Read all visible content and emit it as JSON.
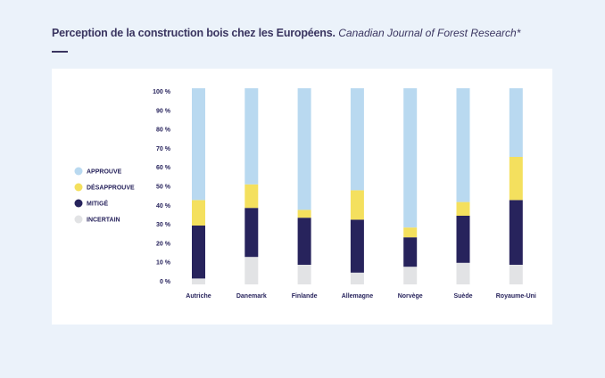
{
  "header": {
    "title": "Perception de la construction bois chez les Européens.",
    "source": "Canadian Journal of Forest Research*"
  },
  "chart_data": {
    "type": "bar",
    "stacked": true,
    "title": "Perception de la construction bois chez les Européens.",
    "categories": [
      "Autriche",
      "Danemark",
      "Finlande",
      "Allemagne",
      "Norvège",
      "Suède",
      "Royaume-Uni"
    ],
    "series": [
      {
        "name": "INCERTAIN",
        "color": "#e2e3e5",
        "values": [
          3,
          14,
          10,
          6,
          9,
          11,
          10
        ]
      },
      {
        "name": "MITIGÉ",
        "color": "#27235c",
        "values": [
          27,
          25,
          24,
          27,
          15,
          24,
          33
        ]
      },
      {
        "name": "DÉSAPPROUVE",
        "color": "#f4e05e",
        "values": [
          13,
          12,
          4,
          15,
          5,
          7,
          22
        ]
      },
      {
        "name": "APPROUVE",
        "color": "#b9d9f0",
        "values": [
          57,
          49,
          62,
          52,
          71,
          58,
          35
        ]
      }
    ],
    "legend_order": [
      "APPROUVE",
      "DÉSAPPROUVE",
      "MITIGÉ",
      "INCERTAIN"
    ],
    "yticks": [
      "0 %",
      "10 %",
      "20 %",
      "30 %",
      "40 %",
      "50 %",
      "60 %",
      "70 %",
      "80 %",
      "90 %",
      "100 %"
    ],
    "ylim": [
      0,
      100
    ],
    "legend_position": "left",
    "grid": false
  }
}
